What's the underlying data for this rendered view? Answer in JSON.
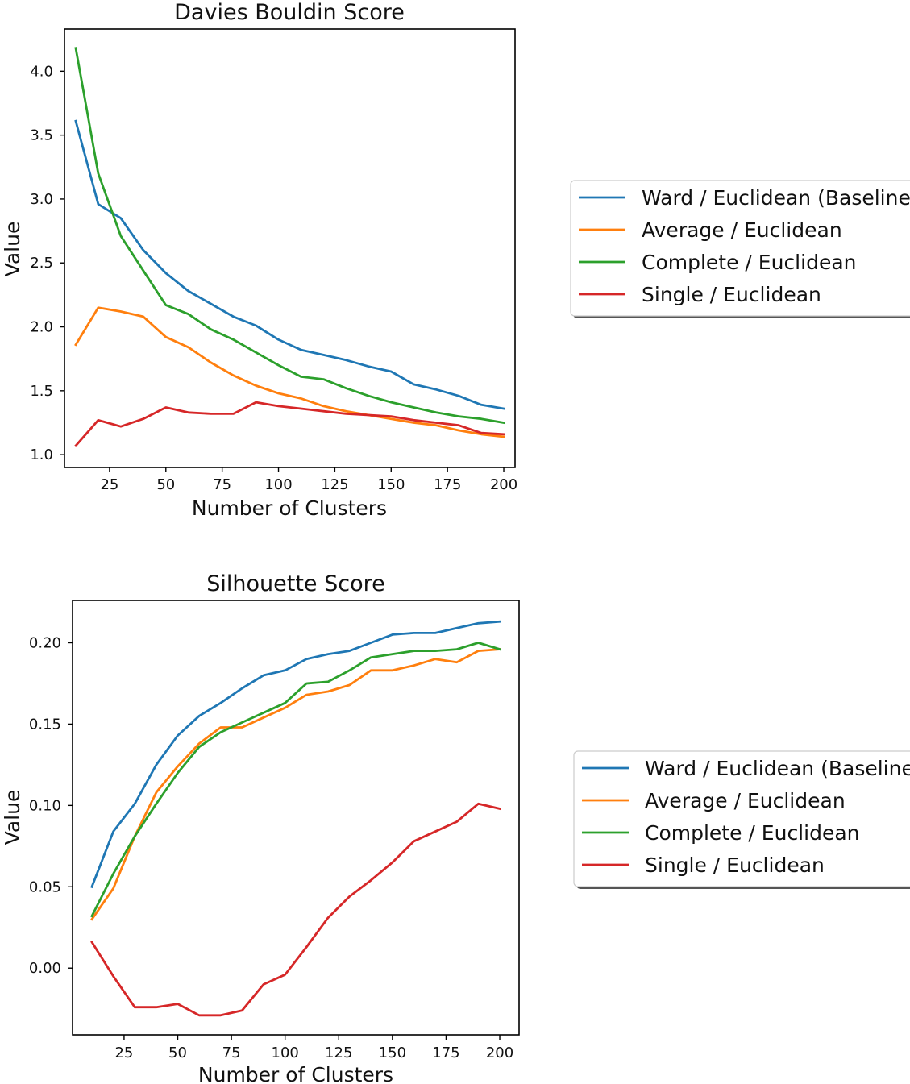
{
  "chart_data": [
    {
      "type": "line",
      "title": "Davies Bouldin Score",
      "xlabel": "Number of Clusters",
      "ylabel": "Value",
      "xlim": [
        5,
        205
      ],
      "ylim": [
        0.9,
        4.33
      ],
      "xticks": [
        25,
        50,
        75,
        100,
        125,
        150,
        175,
        200
      ],
      "yticks": [
        1.0,
        1.5,
        2.0,
        2.5,
        3.0,
        3.5,
        4.0
      ],
      "ytick_labels": [
        "1.0",
        "1.5",
        "2.0",
        "2.5",
        "3.0",
        "3.5",
        "4.0"
      ],
      "grid": false,
      "legend_position": "right",
      "x": [
        10,
        20,
        30,
        40,
        50,
        60,
        70,
        80,
        90,
        100,
        110,
        120,
        130,
        140,
        150,
        160,
        170,
        180,
        190,
        200
      ],
      "series": [
        {
          "name": "Ward / Euclidean (Baseline)",
          "color": "#1f77b4",
          "values": [
            3.61,
            2.96,
            2.85,
            2.6,
            2.42,
            2.28,
            2.18,
            2.08,
            2.01,
            1.9,
            1.82,
            1.78,
            1.74,
            1.69,
            1.65,
            1.55,
            1.51,
            1.46,
            1.39,
            1.36
          ]
        },
        {
          "name": "Average / Euclidean",
          "color": "#ff7f0e",
          "values": [
            1.86,
            2.15,
            2.12,
            2.08,
            1.92,
            1.84,
            1.72,
            1.62,
            1.54,
            1.48,
            1.44,
            1.38,
            1.34,
            1.31,
            1.28,
            1.25,
            1.23,
            1.19,
            1.16,
            1.14
          ]
        },
        {
          "name": "Complete / Euclidean",
          "color": "#2ca02c",
          "values": [
            4.18,
            3.2,
            2.71,
            2.44,
            2.17,
            2.1,
            1.98,
            1.9,
            1.8,
            1.7,
            1.61,
            1.59,
            1.52,
            1.46,
            1.41,
            1.37,
            1.33,
            1.3,
            1.28,
            1.25
          ]
        },
        {
          "name": "Single / Euclidean",
          "color": "#d62728",
          "values": [
            1.07,
            1.27,
            1.22,
            1.28,
            1.37,
            1.33,
            1.32,
            1.32,
            1.41,
            1.38,
            1.36,
            1.34,
            1.32,
            1.31,
            1.3,
            1.27,
            1.25,
            1.23,
            1.17,
            1.16
          ]
        }
      ]
    },
    {
      "type": "line",
      "title": "Silhouette Score",
      "xlabel": "Number of Clusters",
      "ylabel": "Value",
      "xlim": [
        1,
        209
      ],
      "ylim": [
        -0.041,
        0.226
      ],
      "xticks": [
        25,
        50,
        75,
        100,
        125,
        150,
        175,
        200
      ],
      "yticks": [
        0.0,
        0.05,
        0.1,
        0.15,
        0.2
      ],
      "ytick_labels": [
        "0.00",
        "0.05",
        "0.10",
        "0.15",
        "0.20"
      ],
      "grid": false,
      "legend_position": "right",
      "x": [
        10,
        20,
        30,
        40,
        50,
        60,
        70,
        80,
        90,
        100,
        110,
        120,
        130,
        140,
        150,
        160,
        170,
        180,
        190,
        200
      ],
      "series": [
        {
          "name": "Ward / Euclidean (Baseline)",
          "color": "#1f77b4",
          "values": [
            0.05,
            0.084,
            0.101,
            0.125,
            0.143,
            0.155,
            0.163,
            0.172,
            0.18,
            0.183,
            0.19,
            0.193,
            0.195,
            0.2,
            0.205,
            0.206,
            0.206,
            0.209,
            0.212,
            0.213
          ]
        },
        {
          "name": "Average / Euclidean",
          "color": "#ff7f0e",
          "values": [
            0.03,
            0.049,
            0.081,
            0.108,
            0.124,
            0.138,
            0.148,
            0.148,
            0.154,
            0.16,
            0.168,
            0.17,
            0.174,
            0.183,
            0.183,
            0.186,
            0.19,
            0.188,
            0.195,
            0.196
          ]
        },
        {
          "name": "Complete / Euclidean",
          "color": "#2ca02c",
          "values": [
            0.032,
            0.058,
            0.081,
            0.101,
            0.12,
            0.136,
            0.145,
            0.151,
            0.157,
            0.163,
            0.175,
            0.176,
            0.183,
            0.191,
            0.193,
            0.195,
            0.195,
            0.196,
            0.2,
            0.196
          ]
        },
        {
          "name": "Single / Euclidean",
          "color": "#d62728",
          "values": [
            0.016,
            -0.005,
            -0.024,
            -0.024,
            -0.022,
            -0.029,
            -0.029,
            -0.026,
            -0.01,
            -0.004,
            0.013,
            0.031,
            0.044,
            0.054,
            0.065,
            0.078,
            0.084,
            0.09,
            0.101,
            0.098
          ]
        }
      ]
    }
  ]
}
